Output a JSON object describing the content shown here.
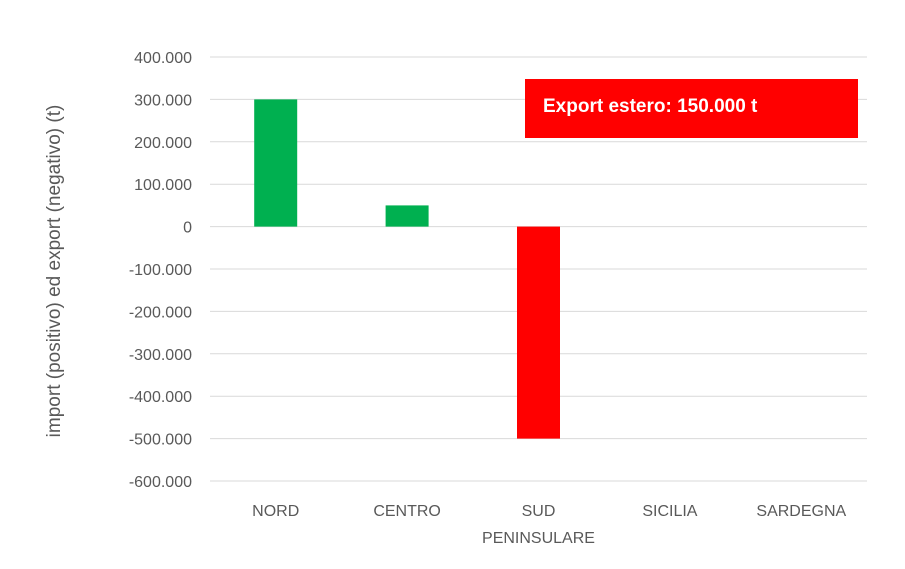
{
  "chart_data": {
    "type": "bar",
    "title": "",
    "xlabel": "",
    "ylabel": "import (positivo) ed export (negativo) (t)",
    "ylim": [
      -600000,
      400000
    ],
    "yticks": [
      400000,
      300000,
      200000,
      100000,
      0,
      -100000,
      -200000,
      -300000,
      -400000,
      -500000,
      -600000
    ],
    "ytick_labels": [
      "400.000",
      "300.000",
      "200.000",
      "100.000",
      "0",
      "-100.000",
      "-200.000",
      "-300.000",
      "-400.000",
      "-500.000",
      "-600.000"
    ],
    "categories": [
      [
        "NORD"
      ],
      [
        "CENTRO"
      ],
      [
        "SUD",
        "PENINSULARE"
      ],
      [
        "SICILIA"
      ],
      [
        "SARDEGNA"
      ]
    ],
    "values": [
      300000,
      50000,
      -500000,
      0,
      0
    ],
    "colors": {
      "positive": "#00b050",
      "negative": "#ff0000",
      "annotation_bg": "#ff0000",
      "grid": "#d9d9d9",
      "text": "#595959"
    },
    "grid": true,
    "legend": "none",
    "annotation": {
      "text": "Export estero: 150.000 t",
      "placement": "top-right"
    }
  }
}
